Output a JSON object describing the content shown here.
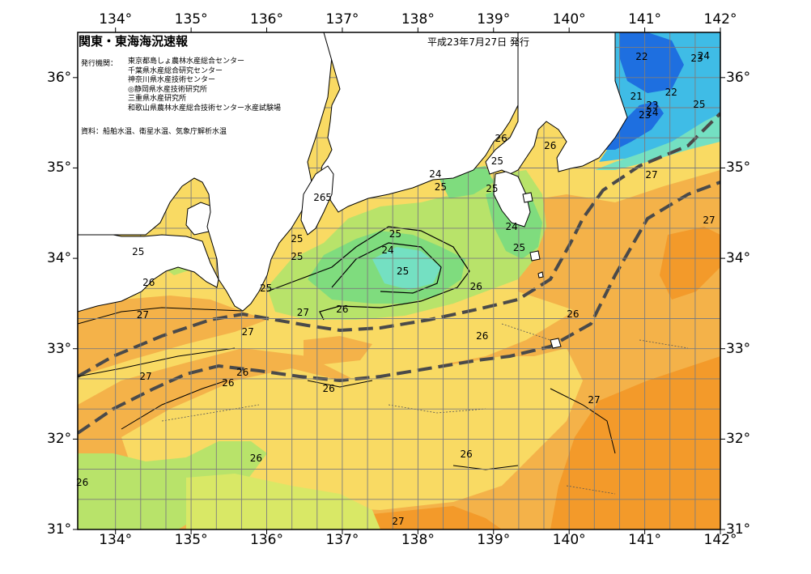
{
  "map": {
    "title": "関東・東海海況速報",
    "issue_date": "平成23年7月27日 発行",
    "issuers_label": "発行機関：",
    "issuers": [
      "東京都島しょ農林水産総合センター",
      "千葉県水産総合研究センター",
      "神奈川県水産技術センター",
      "◎静岡県水産技術研究所",
      "三重県水産研究所",
      "和歌山県農林水産総合技術センター水産試験場"
    ],
    "sources": "資料：船舶水温、衛星水温、気象庁解析水温",
    "lon_labels": [
      "134°",
      "135°",
      "136°",
      "137°",
      "138°",
      "139°",
      "140°",
      "141°",
      "142°"
    ],
    "lat_labels": [
      "36°",
      "35°",
      "34°",
      "33°",
      "32°",
      "31°"
    ],
    "extent": {
      "lon": [
        133.5,
        142.0
      ],
      "lat": [
        31.0,
        36.5
      ]
    },
    "colors": {
      "land": "#ffffff",
      "sea_26": "#f9da63",
      "sea_27": "#f4b249",
      "sea_28": "#f39a2a",
      "sea_25": "#b8e36a",
      "sea_24": "#7fdc7e",
      "sea_23": "#74e0c2",
      "sea_22": "#3fbce6",
      "sea_21": "#1e6fe0",
      "kuroshio": "#4a4a4a"
    },
    "contour_labels": [
      {
        "t": "26",
        "lon": 139.1,
        "lat": 35.33
      },
      {
        "t": "26",
        "lon": 139.75,
        "lat": 35.25
      },
      {
        "t": "25",
        "lon": 139.05,
        "lat": 35.08
      },
      {
        "t": "24",
        "lon": 138.23,
        "lat": 34.93
      },
      {
        "t": "25",
        "lon": 138.3,
        "lat": 34.79
      },
      {
        "t": "25",
        "lon": 138.98,
        "lat": 34.77
      },
      {
        "t": "26",
        "lon": 136.7,
        "lat": 34.67
      },
      {
        "t": "5",
        "lon": 136.82,
        "lat": 34.67
      },
      {
        "t": "25",
        "lon": 137.7,
        "lat": 34.27
      },
      {
        "t": "25",
        "lon": 136.4,
        "lat": 34.22
      },
      {
        "t": "24",
        "lon": 137.6,
        "lat": 34.09
      },
      {
        "t": "25",
        "lon": 136.4,
        "lat": 34.02
      },
      {
        "t": "25",
        "lon": 137.8,
        "lat": 33.86
      },
      {
        "t": "24",
        "lon": 139.24,
        "lat": 34.35
      },
      {
        "t": "25",
        "lon": 139.34,
        "lat": 34.12
      },
      {
        "t": "25",
        "lon": 134.3,
        "lat": 34.07
      },
      {
        "t": "26",
        "lon": 134.44,
        "lat": 33.73
      },
      {
        "t": "25",
        "lon": 135.99,
        "lat": 33.67
      },
      {
        "t": "26",
        "lon": 138.77,
        "lat": 33.69
      },
      {
        "t": "27",
        "lon": 136.48,
        "lat": 33.4
      },
      {
        "t": "26",
        "lon": 137.0,
        "lat": 33.44
      },
      {
        "t": "27",
        "lon": 134.36,
        "lat": 33.37
      },
      {
        "t": "27",
        "lon": 135.75,
        "lat": 33.19
      },
      {
        "t": "26",
        "lon": 138.85,
        "lat": 33.14
      },
      {
        "t": "26",
        "lon": 140.05,
        "lat": 33.38
      },
      {
        "t": "26",
        "lon": 135.68,
        "lat": 32.74
      },
      {
        "t": "27",
        "lon": 134.4,
        "lat": 32.69
      },
      {
        "t": "26",
        "lon": 135.49,
        "lat": 32.62
      },
      {
        "t": "26",
        "lon": 136.82,
        "lat": 32.56
      },
      {
        "t": "27",
        "lon": 140.33,
        "lat": 32.43
      },
      {
        "t": "26",
        "lon": 135.86,
        "lat": 31.79
      },
      {
        "t": "26",
        "lon": 138.64,
        "lat": 31.83
      },
      {
        "t": "26",
        "lon": 133.56,
        "lat": 31.52
      },
      {
        "t": "27",
        "lon": 137.74,
        "lat": 31.09
      },
      {
        "t": "22",
        "lon": 140.96,
        "lat": 36.23
      },
      {
        "t": "23",
        "lon": 141.69,
        "lat": 36.21
      },
      {
        "t": "24",
        "lon": 141.78,
        "lat": 36.24
      },
      {
        "t": "22",
        "lon": 141.35,
        "lat": 35.84
      },
      {
        "t": "21",
        "lon": 140.89,
        "lat": 35.79
      },
      {
        "t": "23",
        "lon": 141.1,
        "lat": 35.69
      },
      {
        "t": "23",
        "lon": 141.0,
        "lat": 35.59
      },
      {
        "t": "24",
        "lon": 141.1,
        "lat": 35.61
      },
      {
        "t": "25",
        "lon": 141.72,
        "lat": 35.7
      },
      {
        "t": "27",
        "lon": 141.09,
        "lat": 34.92
      },
      {
        "t": "27",
        "lon": 141.85,
        "lat": 34.42
      }
    ]
  }
}
